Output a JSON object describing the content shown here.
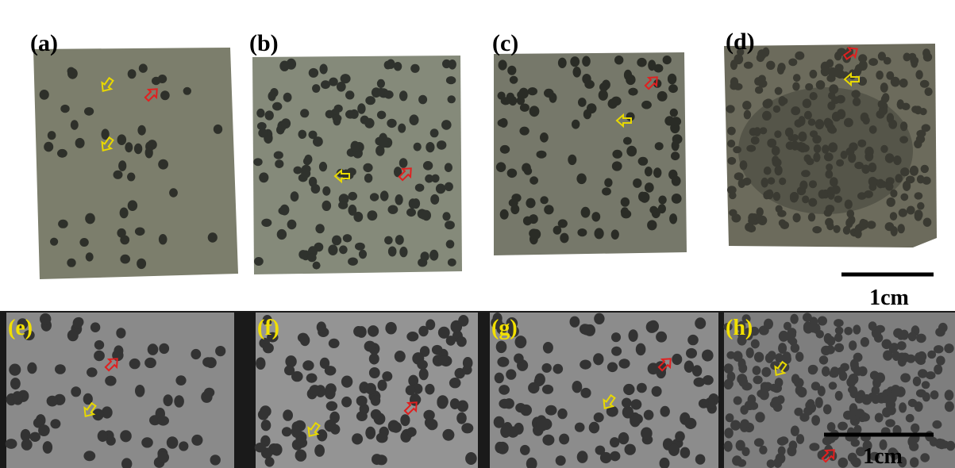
{
  "panels": [
    {
      "label": "(a)"
    },
    {
      "label": "(b)"
    },
    {
      "label": "(c)"
    },
    {
      "label": "(d)"
    },
    {
      "label": "(e)"
    },
    {
      "label": "(f)"
    },
    {
      "label": "(g)"
    },
    {
      "label": "(h)"
    }
  ],
  "scale_bars": [
    {
      "label": "1cm"
    },
    {
      "label": "1cm"
    }
  ]
}
